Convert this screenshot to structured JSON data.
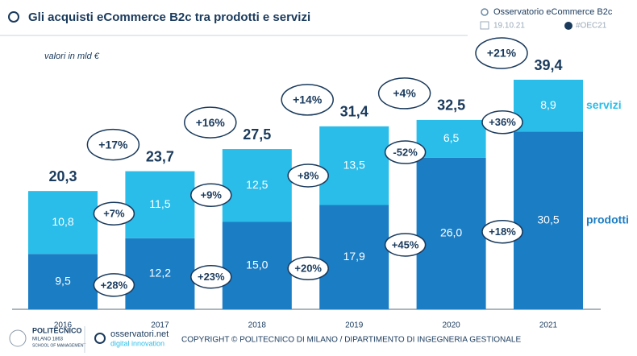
{
  "header": {
    "source": "Osservatorio eCommerce B2c",
    "date": "19.10.21",
    "hashtag": "#OEC21"
  },
  "chart_data": {
    "type": "bar",
    "stacked": true,
    "title": "Gli acquisti eCommerce B2c tra prodotti e servizi",
    "subtitle": "valori in mld €",
    "categories": [
      "2016",
      "2017",
      "2018",
      "2019",
      "2020",
      "2021"
    ],
    "series": [
      {
        "name": "prodotti",
        "color": "#1b7dc4",
        "values": [
          9.5,
          12.2,
          15.0,
          17.9,
          26.0,
          30.5
        ],
        "value_labels": [
          "9,5",
          "12,2",
          "15,0",
          "17,9",
          "26,0",
          "30,5"
        ],
        "growth_labels": [
          null,
          "+28%",
          "+23%",
          "+20%",
          "+45%",
          "+18%"
        ]
      },
      {
        "name": "servizi",
        "color": "#2abde9",
        "values": [
          10.8,
          11.5,
          12.5,
          13.5,
          6.5,
          8.9
        ],
        "value_labels": [
          "10,8",
          "11,5",
          "12,5",
          "13,5",
          "6,5",
          "8,9"
        ],
        "growth_labels": [
          null,
          "+7%",
          "+9%",
          "+8%",
          "-52%",
          "+36%"
        ]
      }
    ],
    "totals": [
      20.3,
      23.7,
      27.5,
      31.4,
      32.5,
      39.4
    ],
    "total_labels": [
      "20,3",
      "23,7",
      "27,5",
      "31,4",
      "32,5",
      "39,4"
    ],
    "total_growth_labels": [
      null,
      "+17%",
      "+16%",
      "+14%",
      "+4%",
      "+21%"
    ]
  },
  "footer": {
    "university": "POLITECNICO",
    "city": "MILANO 1863",
    "school": "SCHOOL OF MANAGEMENT",
    "site": "osservatori.net",
    "site_sub": "digital innovation",
    "copyright": "COPYRIGHT © POLITECNICO DI MILANO / DIPARTIMENTO DI INGEGNERIA GESTIONALE"
  }
}
